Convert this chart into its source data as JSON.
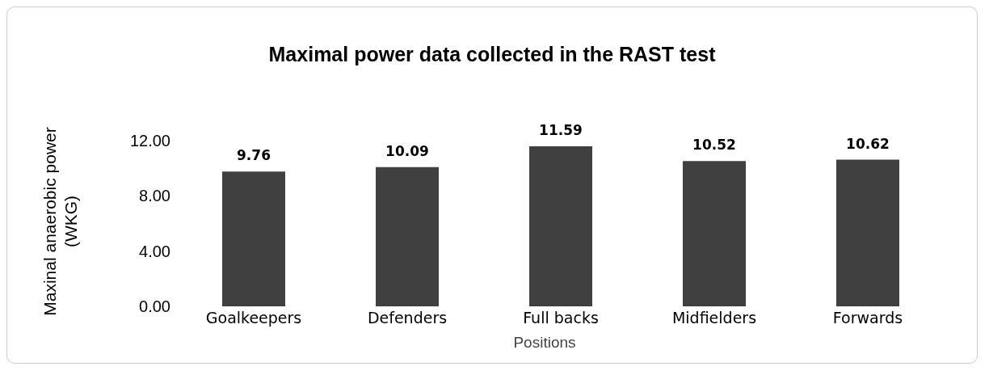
{
  "chart_data": {
    "type": "bar",
    "title": "Maximal power data collected in the RAST test",
    "xlabel": "Positions",
    "ylabel": "Maxinal anaerobic power (WKG)",
    "categories": [
      "Goalkeepers",
      "Defenders",
      "Full backs",
      "Midfielders",
      "Forwards"
    ],
    "values": [
      9.76,
      10.09,
      11.59,
      10.52,
      10.62
    ],
    "color": "#404040",
    "ylim": [
      0,
      12
    ],
    "yticks": [
      {
        "value": 0,
        "label": "0.00"
      },
      {
        "value": 4,
        "label": "4.00"
      },
      {
        "value": 8,
        "label": "8.00"
      },
      {
        "value": 12,
        "label": "12.00"
      }
    ],
    "grid": false,
    "data_labels": true
  }
}
